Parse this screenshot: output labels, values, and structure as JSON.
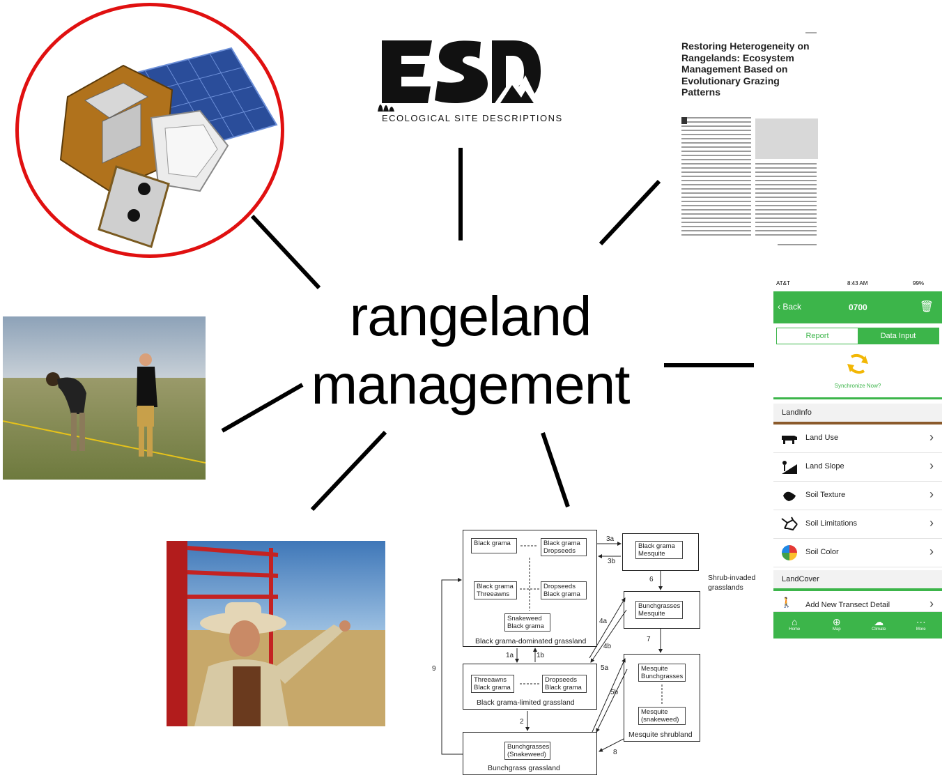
{
  "center": {
    "line1": "rangeland",
    "line2": "management"
  },
  "esd": {
    "logo_text": "ESD",
    "subtitle": "ECOLOGICAL SITE DESCRIPTIONS"
  },
  "paper": {
    "title": "Restoring Heterogeneity on Rangelands: Ecosystem Management Based on Evolutionary Grazing Patterns"
  },
  "phone": {
    "status_carrier": "AT&T",
    "status_time": "8:43 AM",
    "status_battery": "99%",
    "back_label": "Back",
    "header_title": "0700",
    "tabs": [
      "Report",
      "Data Input"
    ],
    "sync_label": "Synchronize Now?",
    "section_landinfo": "LandInfo",
    "rows": [
      {
        "label": "Land Use",
        "icon": "cow-icon"
      },
      {
        "label": "Land Slope",
        "icon": "slope-icon"
      },
      {
        "label": "Soil Texture",
        "icon": "hand-soil-icon"
      },
      {
        "label": "Soil Limitations",
        "icon": "cracked-soil-icon"
      },
      {
        "label": "Soil Color",
        "icon": "color-wheel-icon"
      }
    ],
    "section_landcover": "LandCover",
    "transect_row": "Add New Transect Detail",
    "footer": [
      "Home",
      "Map",
      "Climate",
      "More"
    ],
    "colors": {
      "accent": "#3cb54a",
      "brown_rule": "#8b5a2b"
    }
  },
  "diagram": {
    "states": {
      "bgd": {
        "label": "Black grama-dominated grassland",
        "boxes": [
          "Black grama",
          "Black grama Dropseeds",
          "Black grama Threeawns",
          "Dropseeds Black grama",
          "Snakeweed Black grama"
        ]
      },
      "bgl": {
        "label": "Black grama-limited grassland",
        "boxes": [
          "Threeawns Black grama",
          "Dropseeds Black grama"
        ]
      },
      "bg": {
        "label": "Bunchgrass grassland",
        "boxes": [
          "Bunchgrasses (Snakeweed)"
        ]
      },
      "si": {
        "label": "Shrub-invaded grasslands",
        "boxes": [
          "Black grama Mesquite",
          "Bunchgrasses Mesquite"
        ]
      },
      "ms": {
        "label": "Mesquite shrubland",
        "boxes": [
          "Mesquite Bunchgrasses",
          "Mesquite (snakeweed)"
        ]
      }
    },
    "transitions": [
      "3a",
      "3b",
      "6",
      "4a",
      "4b",
      "7",
      "5a",
      "5b",
      "1a",
      "1b",
      "2",
      "8",
      "9"
    ]
  }
}
